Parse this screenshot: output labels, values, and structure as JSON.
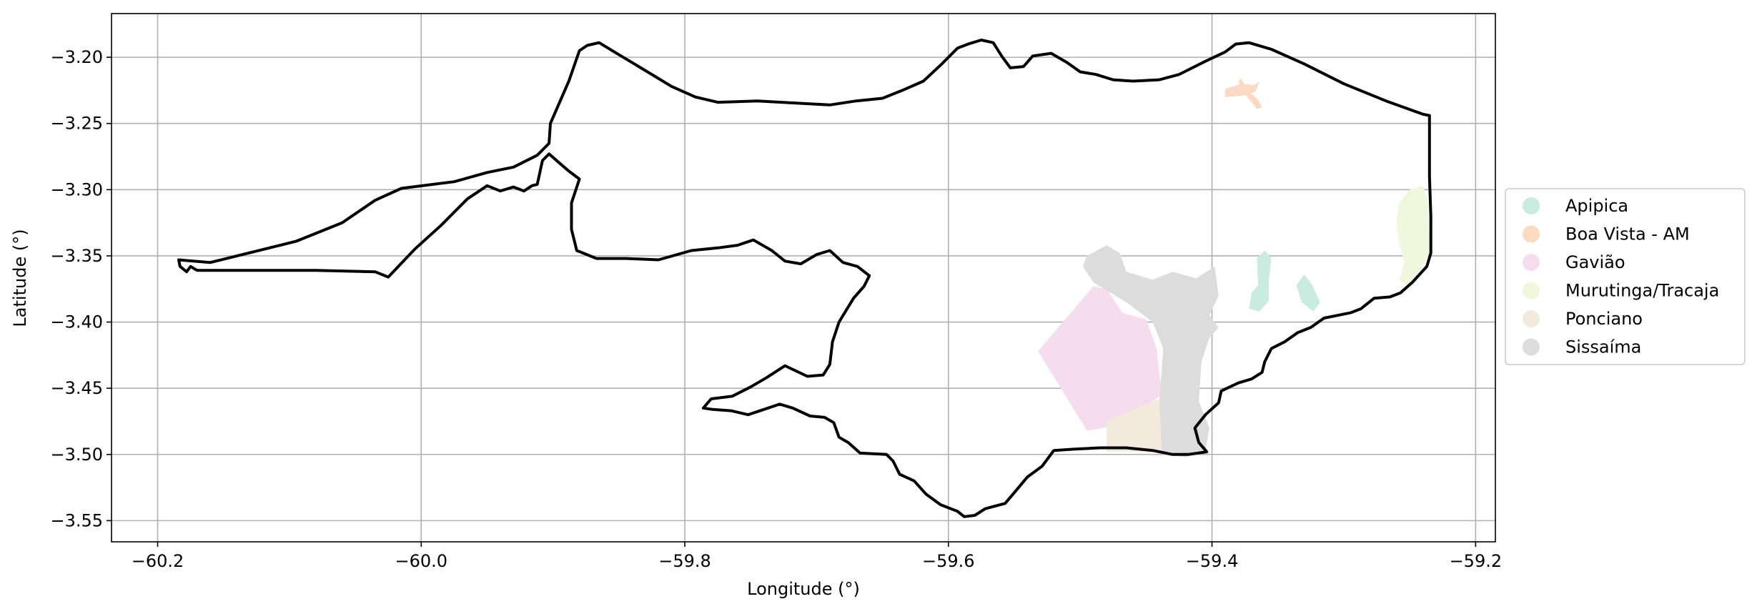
{
  "chart_data": {
    "type": "map",
    "xlabel": "Longitude (°)",
    "ylabel": "Latitude (°)",
    "xlim": [
      -60.235,
      -59.185
    ],
    "ylim": [
      -3.566,
      -3.167
    ],
    "xticks": [
      -60.2,
      -60.0,
      -59.8,
      -59.6,
      -59.4,
      -59.2
    ],
    "xtick_labels": [
      "−60.2",
      "−60.0",
      "−59.8",
      "−59.6",
      "−59.4",
      "−59.2"
    ],
    "yticks": [
      -3.2,
      -3.25,
      -3.3,
      -3.35,
      -3.4,
      -3.45,
      -3.5,
      -3.55
    ],
    "ytick_labels": [
      "−3.20",
      "−3.25",
      "−3.30",
      "−3.35",
      "−3.40",
      "−3.45",
      "−3.50",
      "−3.55"
    ],
    "grid": true,
    "legend_position": "right",
    "outline": {
      "color": "#000000",
      "coords": [
        [
          -60.184,
          -3.353
        ],
        [
          -60.16,
          -3.355
        ],
        [
          -60.095,
          -3.339
        ],
        [
          -60.06,
          -3.325
        ],
        [
          -60.035,
          -3.308
        ],
        [
          -60.015,
          -3.299
        ],
        [
          -59.975,
          -3.294
        ],
        [
          -59.95,
          -3.287
        ],
        [
          -59.93,
          -3.283
        ],
        [
          -59.912,
          -3.274
        ],
        [
          -59.903,
          -3.265
        ],
        [
          -59.902,
          -3.25
        ],
        [
          -59.888,
          -3.218
        ],
        [
          -59.88,
          -3.195
        ],
        [
          -59.874,
          -3.191
        ],
        [
          -59.865,
          -3.189
        ],
        [
          -59.855,
          -3.195
        ],
        [
          -59.83,
          -3.21
        ],
        [
          -59.81,
          -3.222
        ],
        [
          -59.792,
          -3.23
        ],
        [
          -59.775,
          -3.234
        ],
        [
          -59.745,
          -3.233
        ],
        [
          -59.69,
          -3.236
        ],
        [
          -59.67,
          -3.233
        ],
        [
          -59.65,
          -3.231
        ],
        [
          -59.635,
          -3.225
        ],
        [
          -59.619,
          -3.218
        ],
        [
          -59.605,
          -3.205
        ],
        [
          -59.593,
          -3.193
        ],
        [
          -59.585,
          -3.19
        ],
        [
          -59.575,
          -3.187
        ],
        [
          -59.566,
          -3.189
        ],
        [
          -59.559,
          -3.2
        ],
        [
          -59.553,
          -3.208
        ],
        [
          -59.543,
          -3.207
        ],
        [
          -59.536,
          -3.199
        ],
        [
          -59.522,
          -3.197
        ],
        [
          -59.51,
          -3.204
        ],
        [
          -59.5,
          -3.211
        ],
        [
          -59.488,
          -3.213
        ],
        [
          -59.475,
          -3.217
        ],
        [
          -59.46,
          -3.218
        ],
        [
          -59.44,
          -3.217
        ],
        [
          -59.425,
          -3.213
        ],
        [
          -59.405,
          -3.203
        ],
        [
          -59.39,
          -3.196
        ],
        [
          -59.382,
          -3.19
        ],
        [
          -59.372,
          -3.189
        ],
        [
          -59.355,
          -3.194
        ],
        [
          -59.33,
          -3.205
        ],
        [
          -59.3,
          -3.22
        ],
        [
          -59.268,
          -3.233
        ],
        [
          -59.24,
          -3.243
        ],
        [
          -59.235,
          -3.244
        ],
        [
          -59.235,
          -3.29
        ],
        [
          -59.234,
          -3.32
        ],
        [
          -59.234,
          -3.348
        ],
        [
          -59.237,
          -3.358
        ],
        [
          -59.248,
          -3.37
        ],
        [
          -59.257,
          -3.378
        ],
        [
          -59.265,
          -3.381
        ],
        [
          -59.277,
          -3.382
        ],
        [
          -59.287,
          -3.39
        ],
        [
          -59.295,
          -3.393
        ],
        [
          -59.305,
          -3.395
        ],
        [
          -59.315,
          -3.397
        ],
        [
          -59.325,
          -3.404
        ],
        [
          -59.335,
          -3.408
        ],
        [
          -59.345,
          -3.415
        ],
        [
          -59.355,
          -3.42
        ],
        [
          -59.36,
          -3.43
        ],
        [
          -59.362,
          -3.438
        ],
        [
          -59.37,
          -3.443
        ],
        [
          -59.38,
          -3.446
        ],
        [
          -59.393,
          -3.452
        ],
        [
          -59.395,
          -3.461
        ],
        [
          -59.405,
          -3.47
        ],
        [
          -59.413,
          -3.48
        ],
        [
          -59.41,
          -3.491
        ],
        [
          -59.404,
          -3.498
        ],
        [
          -59.418,
          -3.5
        ],
        [
          -59.43,
          -3.5
        ],
        [
          -59.445,
          -3.497
        ],
        [
          -59.465,
          -3.495
        ],
        [
          -59.485,
          -3.495
        ],
        [
          -59.505,
          -3.496
        ],
        [
          -59.52,
          -3.497
        ],
        [
          -59.529,
          -3.509
        ],
        [
          -59.54,
          -3.517
        ],
        [
          -59.551,
          -3.53
        ],
        [
          -59.557,
          -3.537
        ],
        [
          -59.572,
          -3.541
        ],
        [
          -59.58,
          -3.546
        ],
        [
          -59.588,
          -3.547
        ],
        [
          -59.593,
          -3.543
        ],
        [
          -59.606,
          -3.538
        ],
        [
          -59.617,
          -3.53
        ],
        [
          -59.626,
          -3.52
        ],
        [
          -59.637,
          -3.515
        ],
        [
          -59.642,
          -3.505
        ],
        [
          -59.647,
          -3.5
        ],
        [
          -59.667,
          -3.499
        ],
        [
          -59.676,
          -3.491
        ],
        [
          -59.683,
          -3.487
        ],
        [
          -59.687,
          -3.476
        ],
        [
          -59.694,
          -3.472
        ],
        [
          -59.705,
          -3.471
        ],
        [
          -59.718,
          -3.465
        ],
        [
          -59.728,
          -3.462
        ],
        [
          -59.74,
          -3.466
        ],
        [
          -59.752,
          -3.47
        ],
        [
          -59.765,
          -3.467
        ],
        [
          -59.779,
          -3.466
        ],
        [
          -59.786,
          -3.465
        ],
        [
          -59.78,
          -3.458
        ],
        [
          -59.764,
          -3.456
        ],
        [
          -59.75,
          -3.449
        ],
        [
          -59.738,
          -3.442
        ],
        [
          -59.724,
          -3.433
        ],
        [
          -59.707,
          -3.441
        ],
        [
          -59.695,
          -3.44
        ],
        [
          -59.69,
          -3.432
        ],
        [
          -59.688,
          -3.415
        ],
        [
          -59.683,
          -3.4
        ],
        [
          -59.672,
          -3.382
        ],
        [
          -59.664,
          -3.373
        ],
        [
          -59.66,
          -3.365
        ],
        [
          -59.669,
          -3.358
        ],
        [
          -59.68,
          -3.355
        ],
        [
          -59.69,
          -3.346
        ],
        [
          -59.7,
          -3.349
        ],
        [
          -59.712,
          -3.356
        ],
        [
          -59.724,
          -3.354
        ],
        [
          -59.734,
          -3.346
        ],
        [
          -59.748,
          -3.338
        ],
        [
          -59.76,
          -3.342
        ],
        [
          -59.775,
          -3.344
        ],
        [
          -59.795,
          -3.346
        ],
        [
          -59.82,
          -3.353
        ],
        [
          -59.845,
          -3.352
        ],
        [
          -59.867,
          -3.352
        ],
        [
          -59.882,
          -3.346
        ],
        [
          -59.886,
          -3.33
        ],
        [
          -59.886,
          -3.31
        ],
        [
          -59.88,
          -3.292
        ],
        [
          -59.888,
          -3.286
        ],
        [
          -59.895,
          -3.28
        ],
        [
          -59.903,
          -3.273
        ],
        [
          -59.908,
          -3.278
        ],
        [
          -59.912,
          -3.296
        ],
        [
          -59.916,
          -3.297
        ],
        [
          -59.922,
          -3.301
        ],
        [
          -59.93,
          -3.298
        ],
        [
          -59.94,
          -3.301
        ],
        [
          -59.95,
          -3.297
        ],
        [
          -59.965,
          -3.307
        ],
        [
          -59.985,
          -3.327
        ],
        [
          -60.005,
          -3.345
        ],
        [
          -60.025,
          -3.366
        ],
        [
          -60.035,
          -3.362
        ],
        [
          -60.08,
          -3.361
        ],
        [
          -60.12,
          -3.361
        ],
        [
          -60.15,
          -3.361
        ],
        [
          -60.17,
          -3.361
        ],
        [
          -60.175,
          -3.358
        ],
        [
          -60.178,
          -3.362
        ],
        [
          -60.183,
          -3.358
        ],
        [
          -60.184,
          -3.353
        ]
      ]
    },
    "regions": [
      {
        "name": "Apipica",
        "color": "#c9ebe0",
        "polygons": [
          [
            [
              -59.36,
              -3.346
            ],
            [
              -59.366,
              -3.352
            ],
            [
              -59.365,
              -3.372
            ],
            [
              -59.37,
              -3.378
            ],
            [
              -59.372,
              -3.39
            ],
            [
              -59.364,
              -3.392
            ],
            [
              -59.357,
              -3.384
            ],
            [
              -59.357,
              -3.37
            ],
            [
              -59.355,
              -3.352
            ]
          ],
          [
            [
              -59.33,
              -3.364
            ],
            [
              -59.336,
              -3.372
            ],
            [
              -59.332,
              -3.385
            ],
            [
              -59.323,
              -3.392
            ],
            [
              -59.318,
              -3.385
            ],
            [
              -59.324,
              -3.372
            ]
          ]
        ]
      },
      {
        "name": "Boa Vista - AM",
        "color": "#fbd9c2",
        "polygons": [
          [
            [
              -59.39,
              -3.224
            ],
            [
              -59.378,
              -3.22
            ],
            [
              -59.368,
              -3.221
            ],
            [
              -59.364,
              -3.218
            ],
            [
              -59.367,
              -3.226
            ],
            [
              -59.376,
              -3.229
            ],
            [
              -59.39,
              -3.23
            ]
          ],
          [
            [
              -59.378,
              -3.216
            ],
            [
              -59.372,
              -3.226
            ],
            [
              -59.365,
              -3.232
            ],
            [
              -59.362,
              -3.238
            ],
            [
              -59.366,
              -3.239
            ],
            [
              -59.374,
              -3.229
            ],
            [
              -59.38,
              -3.218
            ]
          ]
        ]
      },
      {
        "name": "Gavião",
        "color": "#f5dcee",
        "polygons": [
          [
            [
              -59.532,
              -3.422
            ],
            [
              -59.49,
              -3.373
            ],
            [
              -59.48,
              -3.375
            ],
            [
              -59.468,
              -3.393
            ],
            [
              -59.45,
              -3.398
            ],
            [
              -59.442,
              -3.42
            ],
            [
              -59.438,
              -3.455
            ],
            [
              -59.47,
              -3.478
            ],
            [
              -59.495,
              -3.482
            ]
          ]
        ]
      },
      {
        "name": "Murutinga/Tracaja",
        "color": "#eff8dd",
        "polygons": [
          [
            [
              -59.24,
              -3.297
            ],
            [
              -59.236,
              -3.31
            ],
            [
              -59.235,
              -3.348
            ],
            [
              -59.243,
              -3.362
            ],
            [
              -59.252,
              -3.372
            ],
            [
              -59.258,
              -3.368
            ],
            [
              -59.254,
              -3.355
            ],
            [
              -59.258,
              -3.34
            ],
            [
              -59.26,
              -3.325
            ],
            [
              -59.258,
              -3.31
            ],
            [
              -59.25,
              -3.3
            ]
          ]
        ]
      },
      {
        "name": "Ponciano",
        "color": "#f4eadb",
        "polygons": [
          [
            [
              -59.48,
              -3.475
            ],
            [
              -59.462,
              -3.467
            ],
            [
              -59.44,
              -3.458
            ],
            [
              -59.436,
              -3.498
            ],
            [
              -59.46,
              -3.498
            ],
            [
              -59.48,
              -3.498
            ]
          ]
        ]
      },
      {
        "name": "Sissaíma",
        "color": "#dcdcdc",
        "polygons": [
          [
            [
              -59.495,
              -3.35
            ],
            [
              -59.48,
              -3.342
            ],
            [
              -59.47,
              -3.348
            ],
            [
              -59.465,
              -3.362
            ],
            [
              -59.445,
              -3.368
            ],
            [
              -59.43,
              -3.362
            ],
            [
              -59.412,
              -3.367
            ],
            [
              -59.398,
              -3.358
            ],
            [
              -59.395,
              -3.38
            ],
            [
              -59.402,
              -3.395
            ],
            [
              -59.395,
              -3.404
            ],
            [
              -59.402,
              -3.412
            ],
            [
              -59.408,
              -3.43
            ],
            [
              -59.41,
              -3.46
            ],
            [
              -59.402,
              -3.48
            ],
            [
              -59.405,
              -3.497
            ],
            [
              -59.42,
              -3.502
            ],
            [
              -59.438,
              -3.5
            ],
            [
              -59.44,
              -3.46
            ],
            [
              -59.437,
              -3.42
            ],
            [
              -59.445,
              -3.4
            ],
            [
              -59.465,
              -3.385
            ],
            [
              -59.49,
              -3.37
            ],
            [
              -59.498,
              -3.358
            ]
          ]
        ]
      }
    ]
  }
}
